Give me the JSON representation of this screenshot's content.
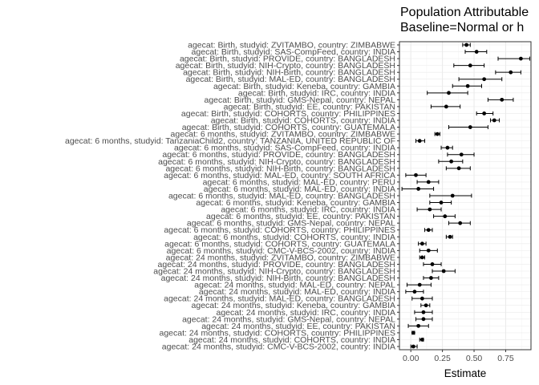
{
  "chart_data": {
    "type": "scatter",
    "subtype": "forest-plot",
    "title_lines": [
      "Population Attributable",
      "Baseline=Normal or h"
    ],
    "xlabel": "Estimate",
    "ylabel": "",
    "xlim": [
      -0.09,
      0.95
    ],
    "xticks": [
      0.0,
      0.25,
      0.5,
      0.75
    ],
    "xtick_labels": [
      "0.00",
      "0.25",
      "0.50",
      "0.75"
    ],
    "grid": true,
    "legend": "none",
    "colors": {
      "point": "#000000",
      "grid_major": "#ebebeb",
      "grid_minor": "#f5f5f5",
      "border": "#333333"
    },
    "rows": [
      {
        "label": "agecat: Birth, studyid: ZVITAMBO, country: ZIMBABWE",
        "est": 0.44,
        "lo": 0.41,
        "hi": 0.47
      },
      {
        "label": "agecat: Birth, studyid: SAS-CompFeed, country: INDIA",
        "est": 0.52,
        "lo": 0.43,
        "hi": 0.6
      },
      {
        "label": "agecat: Birth, studyid: PROVIDE, country: BANGLADESH",
        "est": 0.87,
        "lo": 0.69,
        "hi": 0.94
      },
      {
        "label": "agecat: Birth, studyid: NIH-Crypto, country: BANGLADESH",
        "est": 0.47,
        "lo": 0.34,
        "hi": 0.58
      },
      {
        "label": "agecat: Birth, studyid: NIH-Birth, country: BANGLADESH",
        "est": 0.79,
        "lo": 0.67,
        "hi": 0.87
      },
      {
        "label": "agecat: Birth, studyid: MAL-ED, country: BANGLADESH",
        "est": 0.58,
        "lo": 0.38,
        "hi": 0.72
      },
      {
        "label": "agecat: Birth, studyid: Keneba, country: GAMBIA",
        "est": 0.45,
        "lo": 0.33,
        "hi": 0.56
      },
      {
        "label": "agecat: Birth, studyid: IRC, country: INDIA",
        "est": 0.3,
        "lo": 0.13,
        "hi": 0.45
      },
      {
        "label": "agecat: Birth, studyid: GMS-Nepal, country: NEPAL",
        "est": 0.72,
        "lo": 0.61,
        "hi": 0.81
      },
      {
        "label": "agecat: Birth, studyid: EE, country: PAKISTAN",
        "est": 0.28,
        "lo": 0.16,
        "hi": 0.39
      },
      {
        "label": "agecat: Birth, studyid: COHORTS, country: PHILIPPINES",
        "est": 0.58,
        "lo": 0.52,
        "hi": 0.65
      },
      {
        "label": "agecat: Birth, studyid: COHORTS, country: INDIA",
        "est": 0.66,
        "lo": 0.63,
        "hi": 0.7
      },
      {
        "label": "agecat: Birth, studyid: COHORTS, country: GUATEMALA",
        "est": 0.47,
        "lo": 0.3,
        "hi": 0.61
      },
      {
        "label": "agecat: 6 months, studyid: ZVITAMBO, country: ZIMBABWE",
        "est": 0.21,
        "lo": 0.19,
        "hi": 0.23
      },
      {
        "label": "agecat: 6 months, studyid: TanzaniaChild2, country: TANZANIA, UNITED REPUBLIC OF",
        "est": 0.07,
        "lo": 0.04,
        "hi": 0.11
      },
      {
        "label": "agecat: 6 months, studyid: SAS-CompFeed, country: INDIA",
        "est": 0.29,
        "lo": 0.24,
        "hi": 0.33
      },
      {
        "label": "agecat: 6 months, studyid: PROVIDE, country: BANGLADESH",
        "est": 0.4,
        "lo": 0.29,
        "hi": 0.5
      },
      {
        "label": "agecat: 6 months, studyid: NIH-Crypto, country: BANGLADESH",
        "est": 0.32,
        "lo": 0.22,
        "hi": 0.41
      },
      {
        "label": "agecat: 6 months, studyid: NIH-Birth, country: BANGLADESH",
        "est": 0.38,
        "lo": 0.28,
        "hi": 0.47
      },
      {
        "label": "agecat: 6 months, studyid: MAL-ED, country: SOUTH AFRICA",
        "est": 0.04,
        "lo": -0.04,
        "hi": 0.12
      },
      {
        "label": "agecat: 6 months, studyid: MAL-ED, country: PERU",
        "est": 0.14,
        "lo": 0.05,
        "hi": 0.22
      },
      {
        "label": "agecat: 6 months, studyid: MAL-ED, country: INDIA",
        "est": 0.06,
        "lo": -0.07,
        "hi": 0.18
      },
      {
        "label": "agecat: 6 months, studyid: MAL-ED, country: BANGLADESH",
        "est": 0.33,
        "lo": 0.15,
        "hi": 0.48
      },
      {
        "label": "agecat: 6 months, studyid: Keneba, country: GAMBIA",
        "est": 0.24,
        "lo": 0.15,
        "hi": 0.32
      },
      {
        "label": "agecat: 6 months, studyid: IRC, country: INDIA",
        "est": 0.15,
        "lo": 0.05,
        "hi": 0.24
      },
      {
        "label": "agecat: 6 months, studyid: EE, country: PAKISTAN",
        "est": 0.27,
        "lo": 0.18,
        "hi": 0.35
      },
      {
        "label": "agecat: 6 months, studyid: GMS-Nepal, country: NEPAL",
        "est": 0.39,
        "lo": 0.3,
        "hi": 0.47
      },
      {
        "label": "agecat: 6 months, studyid: COHORTS, country: PHILIPPINES",
        "est": 0.14,
        "lo": 0.11,
        "hi": 0.17
      },
      {
        "label": "agecat: 6 months, studyid: COHORTS, country: INDIA",
        "est": 0.31,
        "lo": 0.28,
        "hi": 0.33
      },
      {
        "label": "agecat: 6 months, studyid: COHORTS, country: GUATEMALA",
        "est": 0.09,
        "lo": 0.06,
        "hi": 0.12
      },
      {
        "label": "agecat: 6 months, studyid: CMC-V-BCS-2002, country: INDIA",
        "est": 0.14,
        "lo": 0.07,
        "hi": 0.21
      },
      {
        "label": "agecat: 24 months, studyid: ZVITAMBO, country: ZIMBABWE",
        "est": 0.09,
        "lo": 0.07,
        "hi": 0.11
      },
      {
        "label": "agecat: 24 months, studyid: PROVIDE, country: BANGLADESH",
        "est": 0.17,
        "lo": 0.1,
        "hi": 0.24
      },
      {
        "label": "agecat: 24 months, studyid: NIH-Crypto, country: BANGLADESH",
        "est": 0.26,
        "lo": 0.17,
        "hi": 0.35
      },
      {
        "label": "agecat: 24 months, studyid: NIH-Birth, country: BANGLADESH",
        "est": 0.16,
        "lo": 0.1,
        "hi": 0.22
      },
      {
        "label": "agecat: 24 months, studyid: MAL-ED, country: NEPAL",
        "est": 0.07,
        "lo": -0.03,
        "hi": 0.16
      },
      {
        "label": "agecat: 24 months, studyid: MAL-ED, country: INDIA",
        "est": 0.03,
        "lo": -0.04,
        "hi": 0.1
      },
      {
        "label": "agecat: 24 months, studyid: MAL-ED, country: BANGLADESH",
        "est": 0.09,
        "lo": 0.01,
        "hi": 0.17
      },
      {
        "label": "agecat: 24 months, studyid: Keneba, country: GAMBIA",
        "est": 0.12,
        "lo": 0.08,
        "hi": 0.15
      },
      {
        "label": "agecat: 24 months, studyid: IRC, country: INDIA",
        "est": 0.1,
        "lo": 0.03,
        "hi": 0.17
      },
      {
        "label": "agecat: 24 months, studyid: GMS-Nepal, country: NEPAL",
        "est": 0.1,
        "lo": 0.04,
        "hi": 0.17
      },
      {
        "label": "agecat: 24 months, studyid: EE, country: PAKISTAN",
        "est": 0.06,
        "lo": -0.02,
        "hi": 0.14
      },
      {
        "label": "agecat: 24 months, studyid: COHORTS, country: PHILIPPINES",
        "est": 0.02,
        "lo": 0.01,
        "hi": 0.03
      },
      {
        "label": "agecat: 24 months, studyid: COHORTS, country: INDIA",
        "est": 0.09,
        "lo": 0.07,
        "hi": 0.1
      },
      {
        "label": "agecat: 24 months, studyid: CMC-V-BCS-2002, country: INDIA",
        "est": 0.02,
        "lo": 0.0,
        "hi": 0.05
      }
    ]
  }
}
